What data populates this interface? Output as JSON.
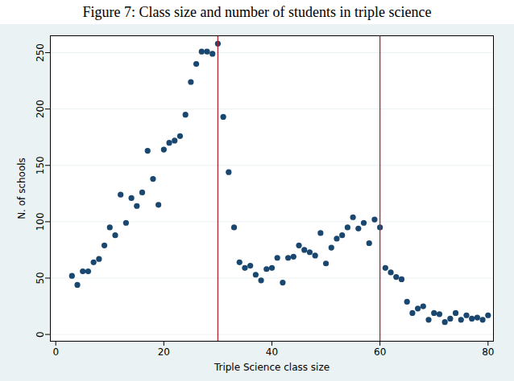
{
  "chart_data": {
    "type": "scatter",
    "title": "Figure 7: Class size and number of students in triple science",
    "x_label": "Triple Science class size",
    "y_label": "N. of schools",
    "x": [
      3,
      4,
      5,
      6,
      7,
      8,
      9,
      10,
      11,
      12,
      13,
      14,
      15,
      16,
      17,
      18,
      19,
      20,
      21,
      22,
      23,
      24,
      25,
      26,
      27,
      28,
      29,
      30,
      31,
      32,
      33,
      34,
      35,
      36,
      37,
      38,
      39,
      40,
      41,
      42,
      43,
      44,
      45,
      46,
      47,
      48,
      49,
      50,
      51,
      52,
      53,
      54,
      55,
      56,
      57,
      58,
      59,
      60,
      61,
      62,
      63,
      64,
      65,
      66,
      67,
      68,
      69,
      70,
      71,
      72,
      73,
      74,
      75,
      76,
      77,
      78,
      79,
      80
    ],
    "values": [
      52,
      44,
      56,
      56,
      64,
      67,
      79,
      95,
      88,
      124,
      99,
      121,
      114,
      126,
      163,
      138,
      115,
      164,
      170,
      172,
      176,
      195,
      224,
      240,
      251,
      251,
      249,
      258,
      193,
      144,
      95,
      64,
      59,
      61,
      53,
      48,
      58,
      59,
      68,
      46,
      68,
      69,
      79,
      75,
      73,
      70,
      90,
      63,
      77,
      85,
      88,
      95,
      104,
      94,
      99,
      81,
      102,
      95,
      59,
      55,
      51,
      49,
      29,
      19,
      23,
      25,
      13,
      19,
      18,
      11,
      14,
      19,
      13,
      17,
      14,
      15,
      13,
      17
    ],
    "color": "#1a476f",
    "marker": "circle",
    "vlines": [
      30,
      60
    ],
    "vline_color": "#b22234",
    "xlim": [
      -1,
      81
    ],
    "xticks": [
      0,
      20,
      40,
      60,
      80
    ],
    "ylim": [
      -6,
      265
    ],
    "yticks": [
      0,
      50,
      100,
      150,
      200,
      250
    ],
    "grid": true
  }
}
